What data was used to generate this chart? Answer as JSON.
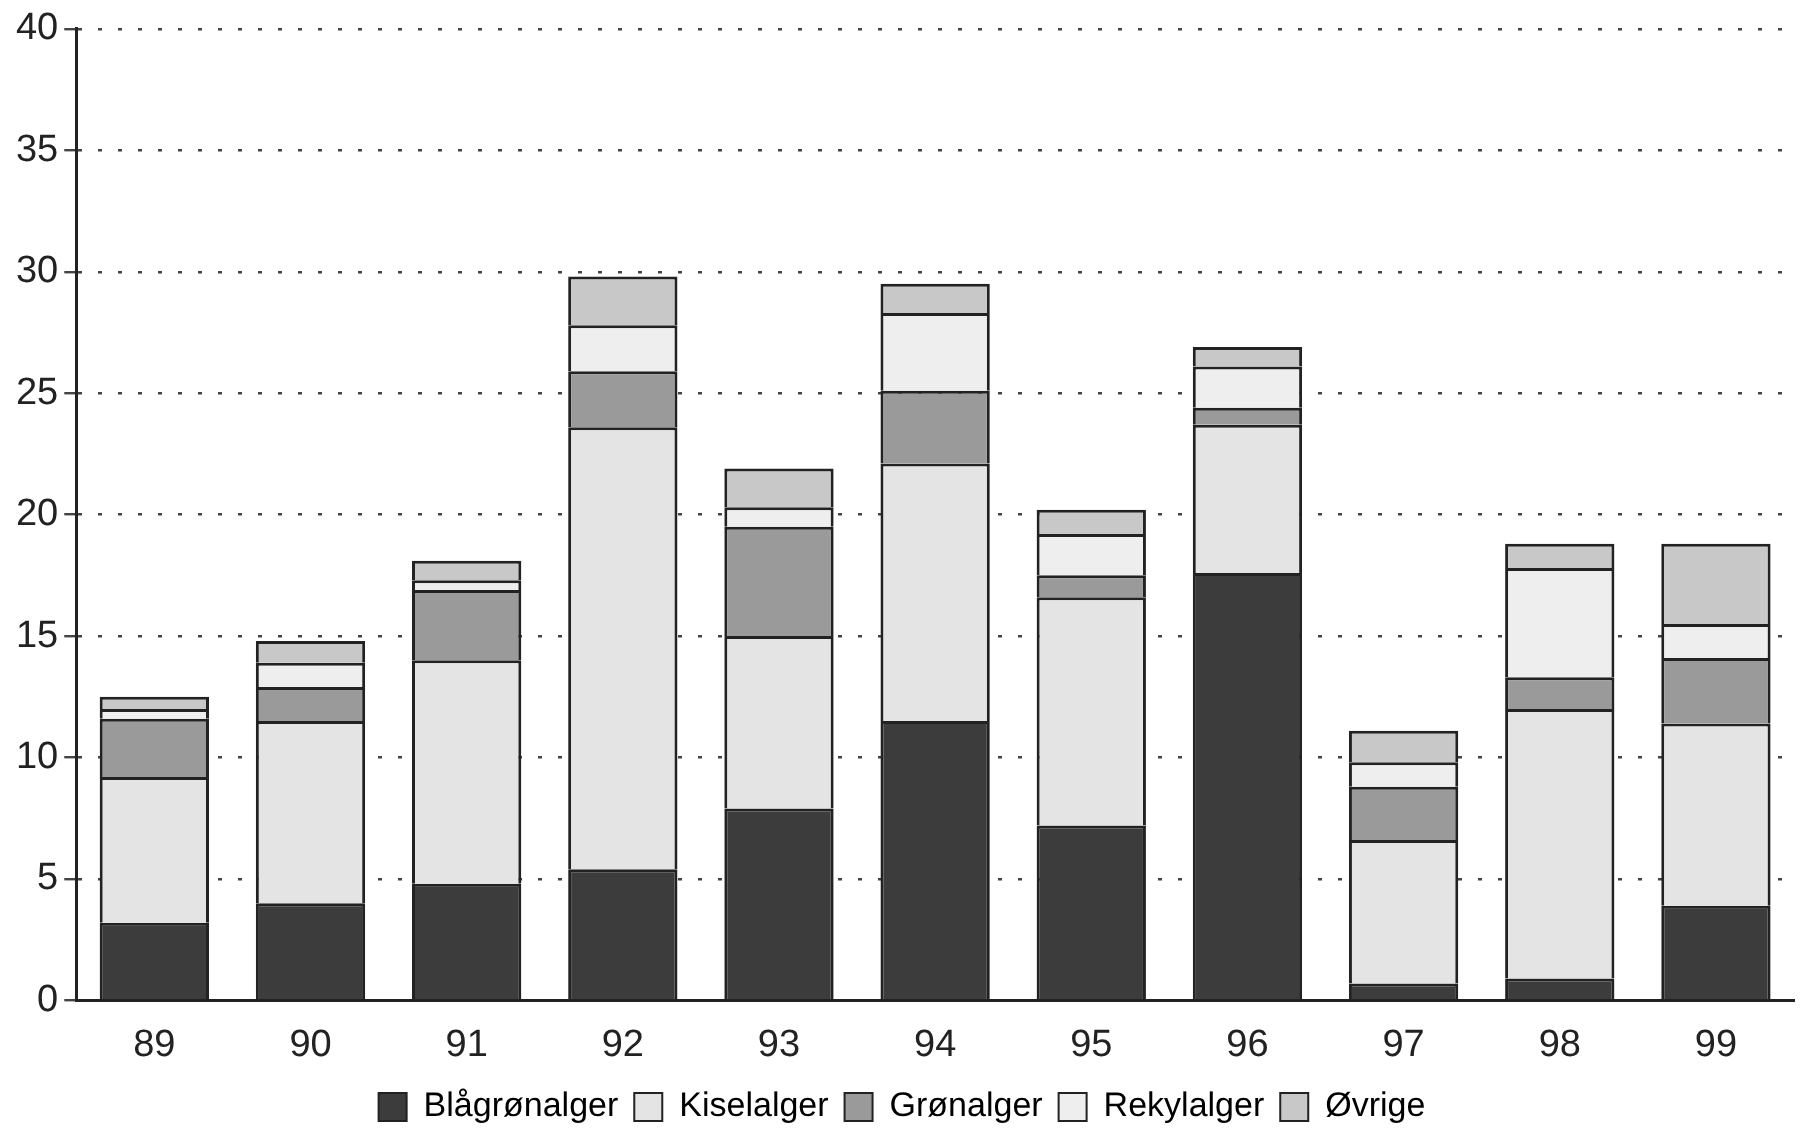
{
  "chart_data": {
    "type": "bar",
    "stacked": true,
    "categories": [
      "89",
      "90",
      "91",
      "92",
      "93",
      "94",
      "95",
      "96",
      "97",
      "98",
      "99"
    ],
    "series": [
      {
        "name": "Blågrønalger",
        "color": "#3c3c3c",
        "values": [
          3.2,
          4.0,
          4.8,
          5.4,
          7.9,
          11.5,
          7.2,
          17.6,
          0.7,
          0.9,
          3.9
        ]
      },
      {
        "name": "Kiselalger",
        "color": "#e4e4e4",
        "values": [
          6.0,
          7.5,
          9.2,
          18.2,
          7.1,
          10.6,
          9.4,
          6.1,
          5.9,
          11.1,
          7.5
        ]
      },
      {
        "name": "Grønalger",
        "color": "#9a9a9a",
        "values": [
          2.4,
          1.4,
          2.9,
          2.3,
          4.5,
          3.0,
          0.9,
          0.7,
          2.2,
          1.3,
          2.7
        ]
      },
      {
        "name": "Rekylalger",
        "color": "#eeeeee",
        "values": [
          0.4,
          1.0,
          0.4,
          1.9,
          0.8,
          3.2,
          1.7,
          1.7,
          1.0,
          4.5,
          1.4
        ]
      },
      {
        "name": "Øvrige",
        "color": "#c8c8c8",
        "values": [
          0.5,
          0.9,
          0.8,
          2.0,
          1.6,
          1.2,
          1.0,
          0.8,
          1.3,
          1.0,
          3.3
        ]
      }
    ],
    "ylim": [
      0,
      40
    ],
    "yticks": [
      0,
      5,
      10,
      15,
      20,
      25,
      30,
      35,
      40
    ],
    "grid": "y",
    "legend": "bottom"
  }
}
